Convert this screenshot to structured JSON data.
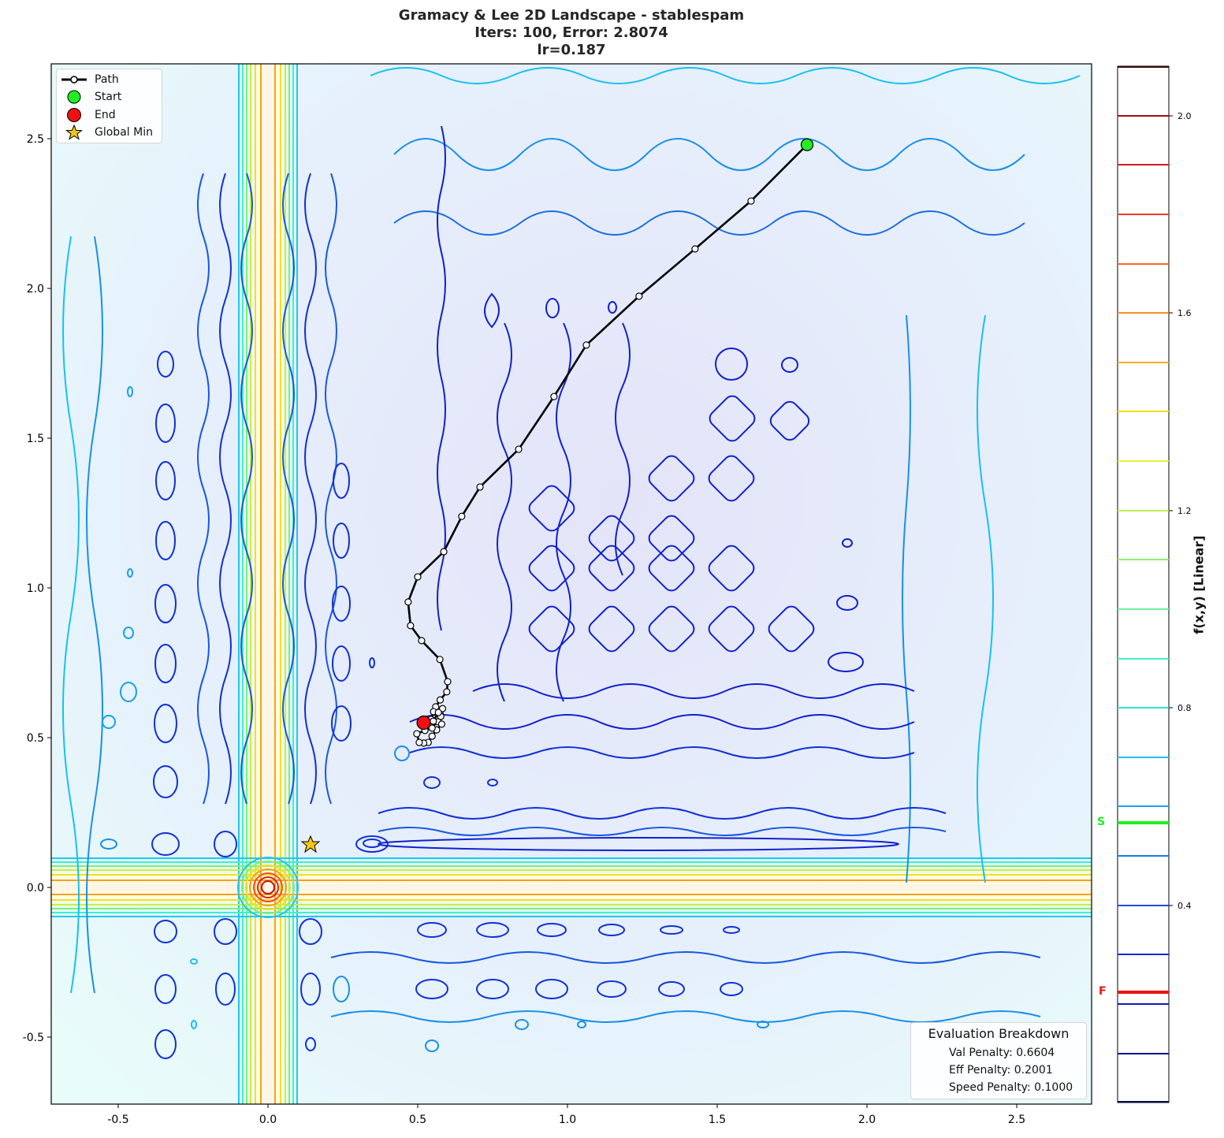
{
  "title": {
    "line1": "Gramacy & Lee 2D Landscape - stablespam",
    "line2": "Iters: 100, Error: 2.8074",
    "line3": "lr=0.187"
  },
  "legend": {
    "items": [
      {
        "label": "Path",
        "symbol": "line-with-circle"
      },
      {
        "label": "Start",
        "symbol": "green-circle"
      },
      {
        "label": "End",
        "symbol": "red-circle"
      },
      {
        "label": "Global Min",
        "symbol": "gold-star"
      }
    ]
  },
  "evaluation": {
    "title": "Evaluation Breakdown",
    "val_penalty": "Val Penalty: 0.6604",
    "eff_penalty": "Eff Penalty: 0.2001",
    "speed_penalty": "Speed Penalty: 0.1000"
  },
  "colorbar": {
    "label": "f(x,y) [Linear]",
    "ticks": [
      "2.0",
      "1.6",
      "1.2",
      "0.8",
      "0.4"
    ],
    "start_marker": "S",
    "final_marker": "F"
  },
  "colors": {
    "start": "#22ee22",
    "end": "#ee1111",
    "path": "#000000",
    "global_min": "#f5c518"
  },
  "chart_data": {
    "type": "contour",
    "title": "Gramacy & Lee 2D Landscape - stablespam\nIters: 100, Error: 2.8074\nlr=0.187",
    "xlabel": "",
    "ylabel": "",
    "xlim": [
      -0.725,
      2.75
    ],
    "ylim": [
      -0.725,
      2.75
    ],
    "x_ticks": [
      "-0.5",
      "0.0",
      "0.5",
      "1.0",
      "1.5",
      "2.0",
      "2.5"
    ],
    "y_ticks": [
      "-0.5",
      "0.0",
      "0.5",
      "1.0",
      "1.5",
      "2.0",
      "2.5"
    ],
    "colormap": "jet",
    "colorbar": {
      "label": "f(x,y) [Linear]",
      "range": [
        0.0,
        2.1
      ],
      "ticks": [
        0.4,
        0.8,
        1.2,
        1.6,
        2.0
      ],
      "contour_levels_step": 0.1
    },
    "colorbar_markers": [
      {
        "label": "S",
        "value": 0.57,
        "color": "#22ee22"
      },
      {
        "label": "F",
        "value": 0.22,
        "color": "#ee1111"
      }
    ],
    "global_min": {
      "x": 0.143,
      "y": 0.143
    },
    "start": {
      "x": 1.8,
      "y": 2.48
    },
    "end": {
      "x": 0.52,
      "y": 0.55
    },
    "path": {
      "x": [
        1.8,
        1.613,
        1.426,
        1.239,
        1.063,
        0.955,
        0.837,
        0.708,
        0.647,
        0.587,
        0.5,
        0.468,
        0.476,
        0.513,
        0.574,
        0.6,
        0.597,
        0.575,
        0.56,
        0.575,
        0.553,
        0.545,
        0.568,
        0.58,
        0.563,
        0.548,
        0.535,
        0.52,
        0.505,
        0.497,
        0.524,
        0.548,
        0.577,
        0.583,
        0.569,
        0.552,
        0.521
      ],
      "y": [
        2.48,
        2.292,
        2.132,
        1.974,
        1.811,
        1.639,
        1.463,
        1.337,
        1.239,
        1.121,
        1.037,
        0.953,
        0.874,
        0.824,
        0.761,
        0.687,
        0.653,
        0.626,
        0.603,
        0.579,
        0.587,
        0.561,
        0.553,
        0.545,
        0.526,
        0.505,
        0.484,
        0.482,
        0.484,
        0.513,
        0.524,
        0.532,
        0.571,
        0.597,
        0.584,
        0.555,
        0.553
      ]
    },
    "iterations": 100,
    "error": 2.8074,
    "lr": 0.187,
    "grid": false,
    "legend_position": "upper left"
  }
}
